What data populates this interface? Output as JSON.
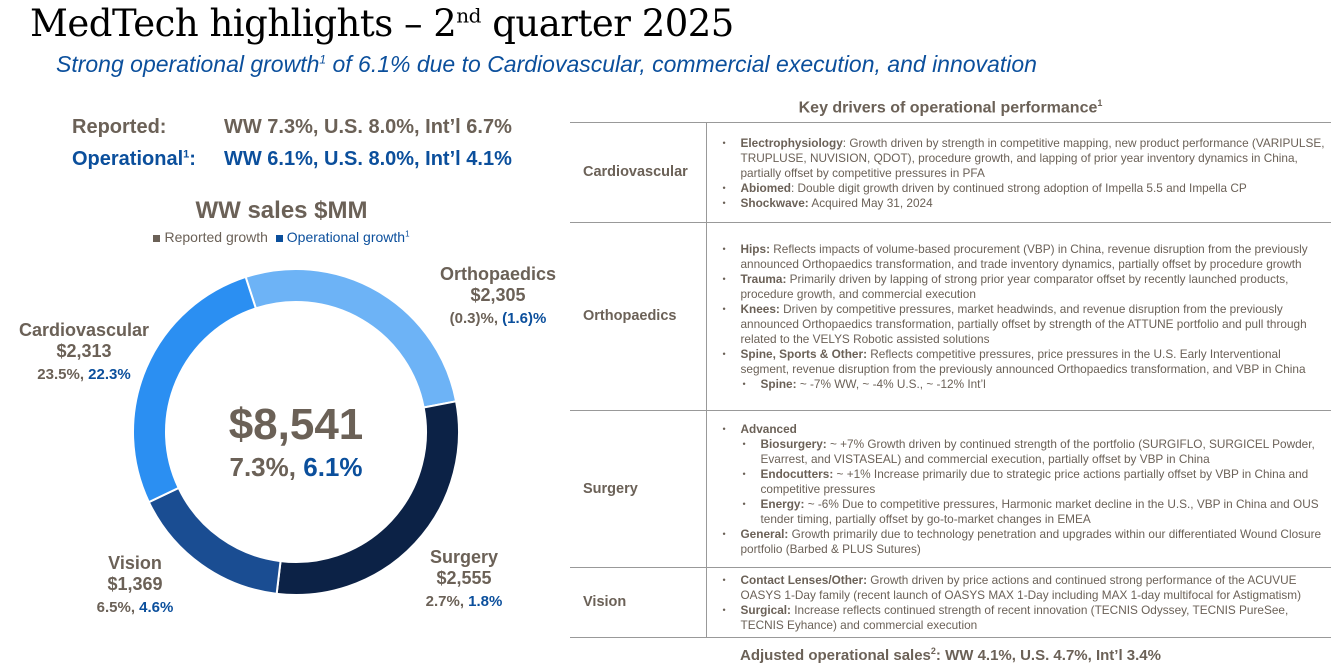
{
  "title": {
    "main": "MedTech highlights – 2",
    "sup": "nd",
    "rest": " quarter 2025"
  },
  "subtitle": {
    "pre": "Strong operational growth",
    "sup": "1",
    "post": " of 6.1% due to Cardiovascular, commercial execution, and innovation"
  },
  "reported": {
    "label": "Reported:",
    "value": "WW 7.3%, U.S. 8.0%, Int’l 6.7%"
  },
  "operational": {
    "label": "Operational",
    "sup": "1",
    "colon": ":",
    "value": "WW 6.1%, U.S. 8.0%, Int’l 4.1%"
  },
  "colors": {
    "grey": "#6b6157",
    "blue": "#0b4f9c"
  },
  "chart_data": {
    "type": "pie",
    "title": "WW sales $MM",
    "legend": [
      {
        "label": "Reported growth",
        "color": "#6b6157"
      },
      {
        "label": "Operational growth",
        "sup": "1",
        "color": "#0b4f9c"
      }
    ],
    "total": {
      "value": "$8,541",
      "reported": "7.3%,",
      "operational": "6.1%"
    },
    "start_angle_deg": -18,
    "segments": [
      {
        "name": "Orthopaedics",
        "value": 2305,
        "label": "$2,305",
        "reported": "(0.3)%,",
        "operational": "(1.6)%",
        "color": "#6db3f6"
      },
      {
        "name": "Surgery",
        "value": 2555,
        "label": "$2,555",
        "reported": "2.7%,",
        "operational": "1.8%",
        "color": "#0c2246"
      },
      {
        "name": "Vision",
        "value": 1369,
        "label": "$1,369",
        "reported": "6.5%,",
        "operational": "4.6%",
        "color": "#1a4d92"
      },
      {
        "name": "Cardiovascular",
        "value": 2313,
        "label": "$2,313",
        "reported": "23.5%,",
        "operational": "22.3%",
        "color": "#2b8ff2"
      }
    ]
  },
  "drivers": {
    "title": "Key drivers of operational performance",
    "title_sup": "1",
    "rows": [
      {
        "category": "Cardiovascular",
        "items": [
          {
            "b": "Electrophysiology",
            "t": ": Growth driven by strength in competitive mapping, new product performance (VARIPULSE, TRUPLUSE, NUVISION, QDOT), procedure growth, and lapping of prior year inventory dynamics in China, partially offset by competitive pressures in PFA"
          },
          {
            "b": "Abiomed",
            "t": ": Double digit growth driven by continued strong adoption of Impella 5.5 and Impella CP"
          },
          {
            "b": "Shockwave:",
            "t": " Acquired May 31, 2024"
          }
        ]
      },
      {
        "category": "Orthopaedics",
        "items": [
          {
            "b": "Hips:",
            "t": " Reflects impacts of volume-based procurement (VBP) in China, revenue disruption from the previously announced Orthopaedics transformation, and trade inventory dynamics, partially offset by procedure growth"
          },
          {
            "b": "Trauma:",
            "t": " Primarily driven by lapping of strong prior year comparator offset by recently launched products, procedure growth, and commercial execution"
          },
          {
            "b": "Knees:",
            "t": " Driven by competitive pressures, market headwinds, and revenue disruption from the previously announced Orthopaedics transformation, partially offset by strength of the ATTUNE portfolio and pull through related to the VELYS Robotic assisted solutions"
          },
          {
            "b": "Spine, Sports & Other:",
            "t": " Reflects competitive pressures, price pressures in the U.S. Early Interventional segment, revenue disruption from the previously announced Orthopaedics transformation, and VBP in China"
          },
          {
            "b": "Spine:",
            "t": " ~ -7% WW, ~ -4% U.S., ~ -12% Int’l",
            "sub": true
          }
        ]
      },
      {
        "category": "Surgery",
        "items": [
          {
            "b": "Advanced",
            "t": ""
          },
          {
            "b": "Biosurgery:",
            "t": " ~ +7% Growth driven by continued strength of the portfolio (SURGIFLO, SURGICEL Powder, Evarrest, and VISTASEAL) and commercial execution, partially offset by VBP in China",
            "sub": true
          },
          {
            "b": "Endocutters:",
            "t": " ~ +1% Increase primarily due to strategic price actions partially offset by VBP in China and competitive pressures",
            "sub": true
          },
          {
            "b": "Energy:",
            "t": " ~ -6% Due to competitive pressures, Harmonic market decline in the U.S., VBP in China and OUS tender timing, partially offset by go-to-market changes in EMEA",
            "sub": true
          },
          {
            "b": "General:",
            "t": " Growth primarily due to technology penetration and upgrades within our differentiated Wound Closure portfolio (Barbed & PLUS Sutures)"
          }
        ]
      },
      {
        "category": "Vision",
        "items": [
          {
            "b": "Contact Lenses/Other:",
            "t": " Growth driven by price actions and continued strong performance of the ACUVUE OASYS 1-Day family (recent launch of OASYS MAX 1-Day including MAX 1-day multifocal for Astigmatism)"
          },
          {
            "b": "Surgical:",
            "t": " Increase reflects continued strength of recent innovation (TECNIS Odyssey, TECNIS PureSee, TECNIS Eyhance) and commercial execution"
          }
        ]
      }
    ]
  },
  "adjusted": {
    "pre": "Adjusted operational sales",
    "sup": "2",
    "post": ": WW 4.1%, U.S. 4.7%, Int’l 3.4%"
  }
}
